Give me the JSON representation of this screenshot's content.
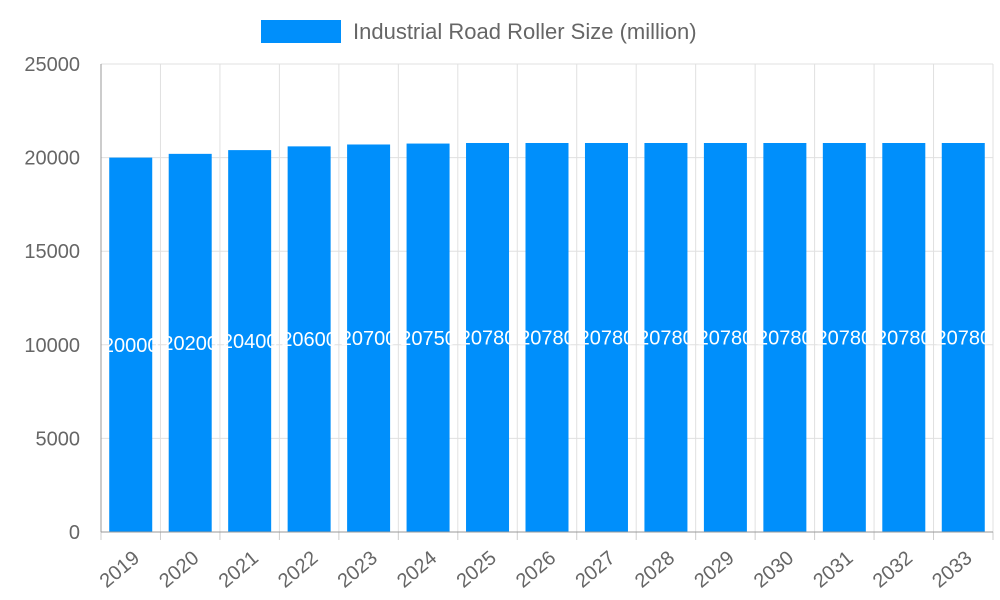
{
  "chart_data": {
    "type": "bar",
    "title": "",
    "xlabel": "",
    "ylabel": "",
    "categories": [
      "2019",
      "2020",
      "2021",
      "2022",
      "2023",
      "2024",
      "2025",
      "2026",
      "2027",
      "2028",
      "2029",
      "2030",
      "2031",
      "2032",
      "2033"
    ],
    "series": [
      {
        "name": "Industrial Road Roller Size (million)",
        "values": [
          20000,
          20200,
          20400,
          20600,
          20700,
          20750,
          20780,
          20780,
          20780,
          20780,
          20780,
          20780,
          20780,
          20780,
          20780
        ],
        "color": "#008ffb"
      }
    ],
    "ylim": [
      0,
      25000
    ],
    "yticks": [
      0,
      5000,
      10000,
      15000,
      20000,
      25000
    ],
    "grid": true,
    "legend": "top",
    "data_labels": true
  }
}
